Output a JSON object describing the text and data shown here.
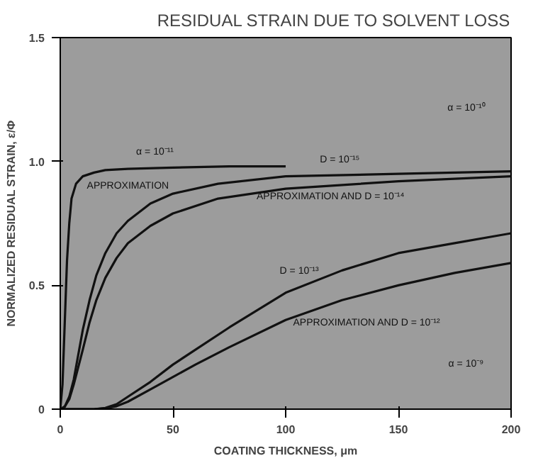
{
  "chart_data": {
    "type": "line",
    "title": "RESIDUAL STRAIN DUE TO SOLVENT LOSS",
    "xlabel": "COATING THICKNESS, μm",
    "ylabel": "NORMALIZED RESIDUAL STRAIN, ε/Φ",
    "xlim": [
      0,
      200
    ],
    "ylim": [
      0,
      1.5
    ],
    "xticks": [
      0,
      50,
      100,
      150,
      200
    ],
    "yticks": [
      0,
      0.5,
      {
        "value": 1.0,
        "label": "1.0"
      },
      1.5
    ],
    "grid": false,
    "series": [
      {
        "color": "#111111",
        "x": [
          0,
          1,
          2,
          3,
          4,
          5,
          7,
          10,
          15,
          20,
          30,
          50,
          75,
          100
        ],
        "values": [
          0,
          0.1,
          0.35,
          0.6,
          0.75,
          0.85,
          0.91,
          0.94,
          0.955,
          0.965,
          0.97,
          0.975,
          0.98,
          0.98
        ]
      },
      {
        "color": "#111111",
        "x": [
          0,
          2,
          4,
          6,
          8,
          10,
          13,
          16,
          20,
          25,
          30,
          40,
          50,
          70,
          100,
          150,
          200
        ],
        "values": [
          0,
          0.01,
          0.05,
          0.12,
          0.22,
          0.32,
          0.44,
          0.54,
          0.63,
          0.71,
          0.76,
          0.83,
          0.87,
          0.91,
          0.94,
          0.95,
          0.96
        ]
      },
      {
        "color": "#111111",
        "x": [
          0,
          2,
          4,
          6,
          8,
          10,
          13,
          16,
          20,
          25,
          30,
          40,
          50,
          70,
          100,
          150,
          200
        ],
        "values": [
          0,
          0.01,
          0.04,
          0.1,
          0.17,
          0.24,
          0.35,
          0.44,
          0.53,
          0.61,
          0.67,
          0.74,
          0.79,
          0.85,
          0.89,
          0.92,
          0.94
        ]
      },
      {
        "color": "#111111",
        "x": [
          0,
          10,
          15,
          20,
          25,
          30,
          40,
          50,
          60,
          75,
          100,
          125,
          150,
          175,
          200
        ],
        "values": [
          0,
          0,
          0,
          0.005,
          0.02,
          0.05,
          0.11,
          0.18,
          0.24,
          0.33,
          0.47,
          0.56,
          0.63,
          0.67,
          0.71
        ]
      },
      {
        "color": "#111111",
        "x": [
          0,
          10,
          15,
          20,
          25,
          30,
          40,
          50,
          60,
          75,
          100,
          125,
          150,
          175,
          200
        ],
        "values": [
          0,
          0,
          0,
          0.003,
          0.012,
          0.03,
          0.08,
          0.13,
          0.18,
          0.25,
          0.36,
          0.44,
          0.5,
          0.55,
          0.59
        ]
      }
    ],
    "annotations": [
      "α = 10⁻¹¹",
      "APPROXIMATION",
      "D = 10⁻¹⁵",
      "APPROXIMATION AND D = 10⁻¹⁴",
      "α = 10⁻¹⁰",
      "D = 10⁻¹³",
      "APPROXIMATION AND D = 10⁻¹²",
      "α = 10⁻⁹"
    ]
  }
}
